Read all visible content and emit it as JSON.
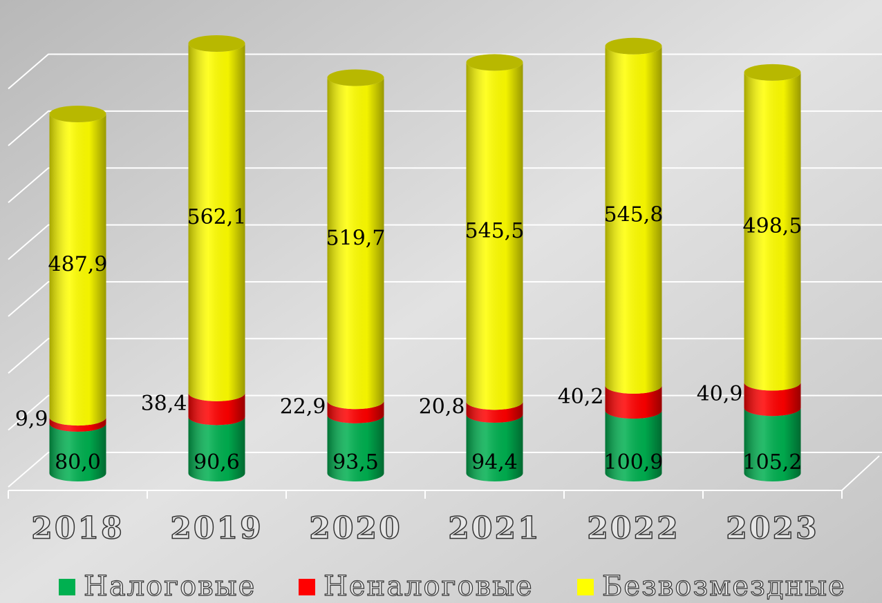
{
  "chart_data": {
    "type": "bar3d_stacked_cylinder",
    "categories": [
      "2018",
      "2019",
      "2020",
      "2021",
      "2022",
      "2023"
    ],
    "series": [
      {
        "name": "Налоговые",
        "color": "#00b050",
        "values": [
          80.0,
          90.6,
          93.5,
          94.4,
          100.9,
          105.2
        ],
        "value_labels": [
          "80,0",
          "90,6",
          "93,5",
          "94,4",
          "100,9",
          "105,2"
        ]
      },
      {
        "name": "Неналоговые",
        "color": "#ff0000",
        "values": [
          9.9,
          38.4,
          22.9,
          20.8,
          40.2,
          40.9
        ],
        "value_labels": [
          "9,9",
          "38,4",
          "22,9",
          "20,8",
          "40,2",
          "40,9"
        ]
      },
      {
        "name": "Безвозмездные",
        "color": "#ffff00",
        "values": [
          487.9,
          562.1,
          519.7,
          545.5,
          545.8,
          498.5
        ],
        "value_labels": [
          "487,9",
          "562,1",
          "519,7",
          "545,5",
          "545,8",
          "498,5"
        ]
      }
    ],
    "ylim": [
      0,
      700
    ],
    "yticks": [
      0,
      100,
      200,
      300,
      400,
      500,
      600,
      700
    ],
    "grid": true,
    "legend": "bottom"
  }
}
